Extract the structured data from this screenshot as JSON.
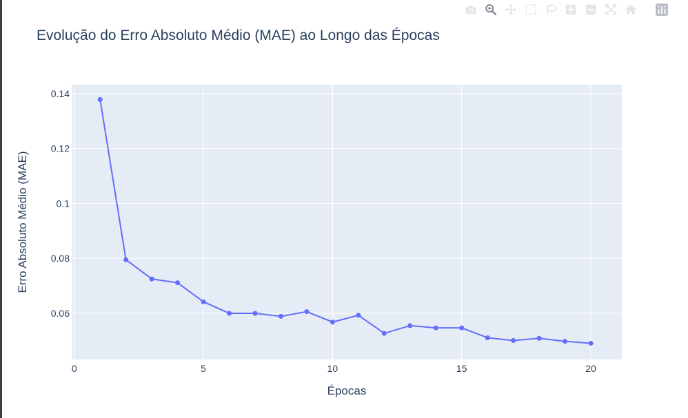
{
  "chart_data": {
    "type": "line",
    "title": "Evolução do Erro Absoluto Médio (MAE) ao Longo das Épocas",
    "xlabel": "Épocas",
    "ylabel": "Erro Absoluto Médio (MAE)",
    "x": [
      1,
      2,
      3,
      4,
      5,
      6,
      7,
      8,
      9,
      10,
      11,
      12,
      13,
      14,
      15,
      16,
      17,
      18,
      19,
      20
    ],
    "series": [
      {
        "values": [
          0.1378,
          0.0795,
          0.0725,
          0.0711,
          0.0642,
          0.06,
          0.06,
          0.0589,
          0.0606,
          0.0568,
          0.0593,
          0.0527,
          0.0555,
          0.0547,
          0.0547,
          0.0511,
          0.0501,
          0.0509,
          0.0498,
          0.0491
        ]
      }
    ],
    "xlim": [
      -0.1,
      21.2
    ],
    "ylim": [
      0.0432,
      0.1432
    ],
    "xticks": [
      0,
      5,
      10,
      15,
      20
    ],
    "xtick_labels": [
      "0",
      "5",
      "10",
      "15",
      "20"
    ],
    "yticks": [
      0.06,
      0.08,
      0.1,
      0.12,
      0.14
    ],
    "ytick_labels": [
      "0.06",
      "0.08",
      "0.1",
      "0.12",
      "0.14"
    ],
    "grid": true,
    "colors": {
      "line": "#636efa",
      "plot_bg": "#e5ecf6",
      "grid": "#ffffff",
      "text": "#2a3f5f"
    }
  },
  "modebar": {
    "buttons": [
      "camera-icon",
      "zoom-icon",
      "pan-icon",
      "box-select-icon",
      "lasso-icon",
      "zoom-in-icon",
      "zoom-out-icon",
      "autoscale-icon",
      "home-icon",
      "plotly-logo-icon"
    ]
  }
}
